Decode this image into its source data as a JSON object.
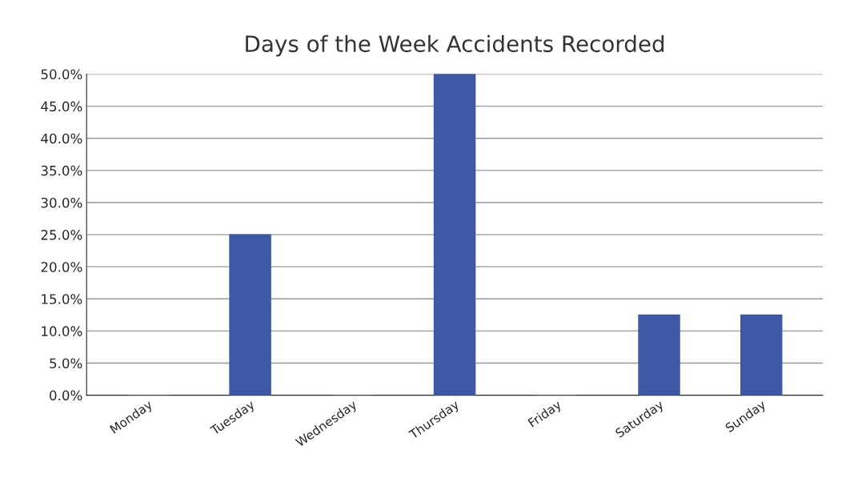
{
  "chart_data": {
    "type": "bar",
    "title": "Days of the Week Accidents Recorded",
    "categories": [
      "Monday",
      "Tuesday",
      "Wednesday",
      "Thursday",
      "Friday",
      "Saturday",
      "Sunday"
    ],
    "values": [
      0,
      25,
      0,
      50,
      0,
      12.5,
      12.5
    ],
    "color": "#3f58a6",
    "ylim": [
      0,
      50
    ],
    "yticks": [
      {
        "value": 0,
        "label": "0.0%"
      },
      {
        "value": 5,
        "label": "5.0%"
      },
      {
        "value": 10,
        "label": "10.0%"
      },
      {
        "value": 15,
        "label": "15.0%"
      },
      {
        "value": 20,
        "label": "20.0%"
      },
      {
        "value": 25,
        "label": "25.0%"
      },
      {
        "value": 30,
        "label": "30.0%"
      },
      {
        "value": 35,
        "label": "35.0%"
      },
      {
        "value": 40,
        "label": "40.0%"
      },
      {
        "value": 45,
        "label": "45.0%"
      },
      {
        "value": 50,
        "label": "50.0%"
      }
    ],
    "grid": "y"
  }
}
